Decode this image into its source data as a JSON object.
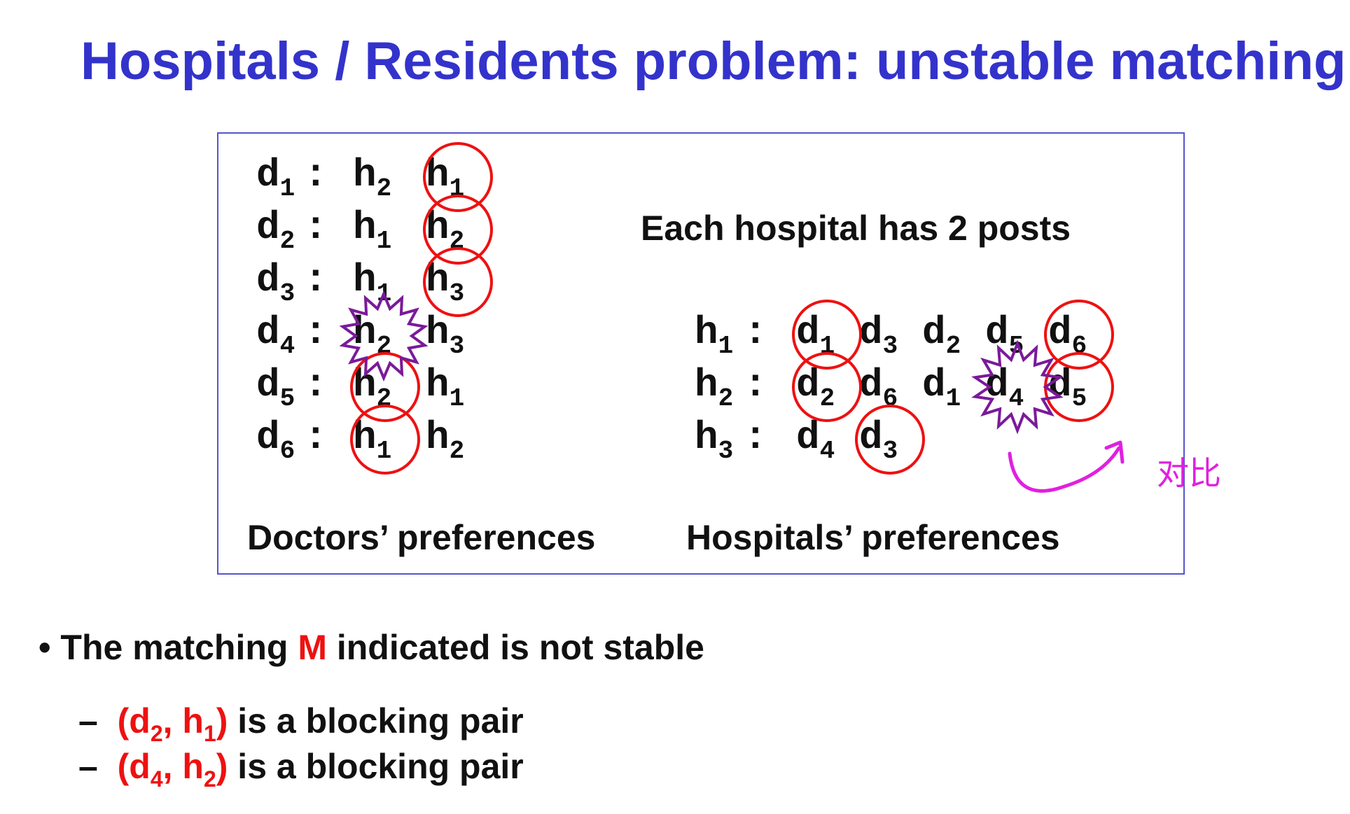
{
  "title": "Hospitals / Residents problem: unstable matching",
  "doctors": {
    "caption": "Doctors’ preferences",
    "rows": [
      {
        "name": "d1",
        "base": "d",
        "sub": "1",
        "prefs": [
          {
            "b": "h",
            "s": "2"
          },
          {
            "b": "h",
            "s": "1"
          }
        ]
      },
      {
        "name": "d2",
        "base": "d",
        "sub": "2",
        "prefs": [
          {
            "b": "h",
            "s": "1"
          },
          {
            "b": "h",
            "s": "2"
          }
        ]
      },
      {
        "name": "d3",
        "base": "d",
        "sub": "3",
        "prefs": [
          {
            "b": "h",
            "s": "1"
          },
          {
            "b": "h",
            "s": "3"
          }
        ]
      },
      {
        "name": "d4",
        "base": "d",
        "sub": "4",
        "prefs": [
          {
            "b": "h",
            "s": "2"
          },
          {
            "b": "h",
            "s": "3"
          }
        ]
      },
      {
        "name": "d5",
        "base": "d",
        "sub": "5",
        "prefs": [
          {
            "b": "h",
            "s": "2"
          },
          {
            "b": "h",
            "s": "1"
          }
        ]
      },
      {
        "name": "d6",
        "base": "d",
        "sub": "6",
        "prefs": [
          {
            "b": "h",
            "s": "1"
          },
          {
            "b": "h",
            "s": "2"
          }
        ]
      }
    ],
    "matched": [
      [
        0,
        1
      ],
      [
        1,
        1
      ],
      [
        2,
        1
      ],
      [
        4,
        0
      ],
      [
        5,
        0
      ]
    ],
    "blocking": [
      [
        3,
        0
      ]
    ]
  },
  "hospitals": {
    "capacity_note": "Each hospital has 2 posts",
    "caption": "Hospitals’ preferences",
    "rows": [
      {
        "name": "h1",
        "base": "h",
        "sub": "1",
        "prefs": [
          {
            "b": "d",
            "s": "1"
          },
          {
            "b": "d",
            "s": "3"
          },
          {
            "b": "d",
            "s": "2"
          },
          {
            "b": "d",
            "s": "5"
          },
          {
            "b": "d",
            "s": "6"
          }
        ]
      },
      {
        "name": "h2",
        "base": "h",
        "sub": "2",
        "prefs": [
          {
            "b": "d",
            "s": "2"
          },
          {
            "b": "d",
            "s": "6"
          },
          {
            "b": "d",
            "s": "1"
          },
          {
            "b": "d",
            "s": "4"
          },
          {
            "b": "d",
            "s": "5"
          }
        ]
      },
      {
        "name": "h3",
        "base": "h",
        "sub": "3",
        "prefs": [
          {
            "b": "d",
            "s": "4"
          },
          {
            "b": "d",
            "s": "3"
          }
        ]
      }
    ],
    "matched": [
      [
        0,
        0
      ],
      [
        0,
        4
      ],
      [
        1,
        0
      ],
      [
        1,
        4
      ],
      [
        2,
        1
      ]
    ],
    "blocking": [
      [
        1,
        3
      ]
    ]
  },
  "annotation": "对比",
  "bullets": {
    "main": {
      "prefix": "The matching ",
      "highlight": "M",
      "suffix": " indicated is not stable"
    },
    "sub": [
      {
        "dash": "–",
        "open": "(",
        "d": "d",
        "ds": "2",
        "sep": ", ",
        "h": "h",
        "hs": "1",
        "close": ")",
        "text": " is a blocking pair"
      },
      {
        "dash": "–",
        "open": "(",
        "d": "d",
        "ds": "4",
        "sep": ", ",
        "h": "h",
        "hs": "2",
        "close": ")",
        "text": " is a blocking pair"
      }
    ]
  },
  "colors": {
    "title": "#3333cc",
    "match_circle": "#ee1111",
    "blocking_star": "#7a1a9a",
    "annotation": "#e020e0",
    "highlight": "#ee1111"
  }
}
